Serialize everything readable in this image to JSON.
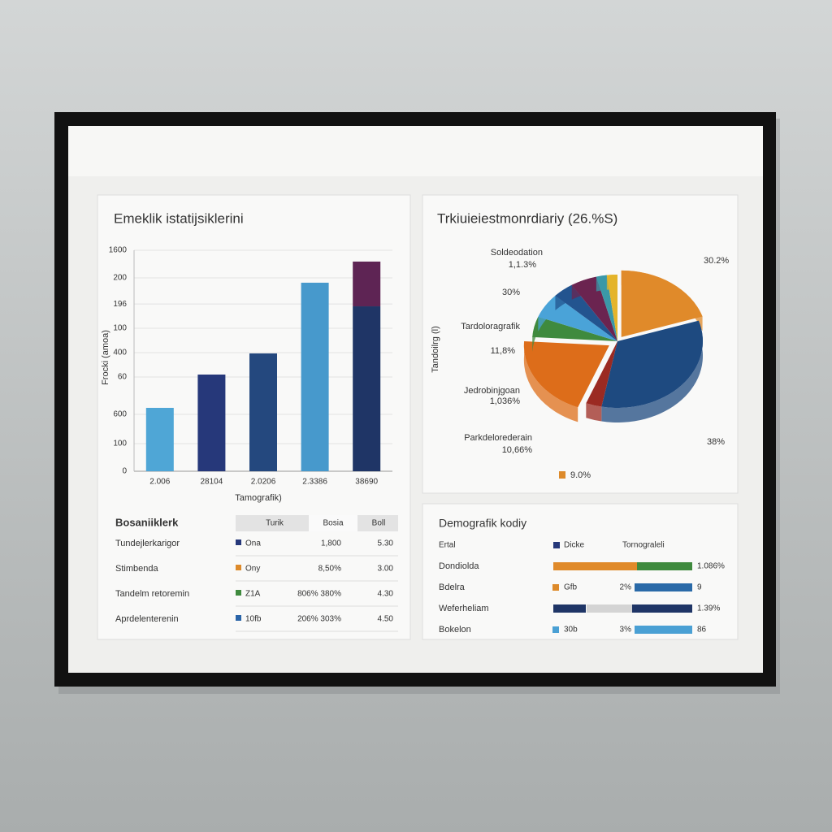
{
  "chart_data": [
    {
      "type": "bar",
      "title": "Emeklik istatijsiklerini",
      "y_label": "Frocki (amoa)",
      "x_label": "Tamografik)",
      "categories": [
        "2.006",
        "28104",
        "2.0206",
        "2.3386",
        "38690"
      ],
      "values": [
        459,
        700,
        853,
        1365,
        1194
      ],
      "colors": [
        "#4fa6d6",
        "#26387a",
        "#24487e",
        "#4799cc",
        "#1f3566"
      ],
      "stack_values": [
        null,
        null,
        null,
        null,
        324
      ],
      "stack_color": "#5e2454",
      "ylim": [
        0,
        1600
      ],
      "yticks": [
        {
          "value": 200,
          "label": "100"
        },
        {
          "value": 412,
          "label": "600"
        },
        {
          "value": 682,
          "label": "60"
        },
        {
          "value": 859,
          "label": "400"
        },
        {
          "value": 1035,
          "label": "100"
        },
        {
          "value": 1211,
          "label": "196"
        },
        {
          "value": 1400,
          "label": "200"
        },
        1600,
        0
      ],
      "grid": true
    },
    {
      "type": "pie",
      "title": "Trkiuieiestmonrdiariy (26.%S)",
      "y_label": "Tandoilrg (l)",
      "values": [
        20,
        33,
        3,
        20,
        5,
        6,
        4,
        5,
        2,
        2
      ],
      "colors": [
        "#e08a2a",
        "#1e4a80",
        "#9b2a22",
        "#dd6d1a",
        "#3f8a3e",
        "#4aa3d8",
        "#23548f",
        "#6b2450",
        "#3a98a8",
        "#e4b42a"
      ],
      "annotations": [
        "30.2%",
        "38%",
        "Soldeodation",
        "1,1.3%",
        "30%",
        "Tardoloragrafik",
        "11,8%",
        "Jedrobinjgoan",
        "1,036%",
        "Parkdelorederain",
        "10,66%",
        "9.0%"
      ]
    }
  ],
  "table": {
    "title": "Bosaniiklerk",
    "columns": [
      "Turik",
      "Bosia",
      "Boll"
    ],
    "rows": [
      [
        "Tundejlerkarigor",
        "Ona",
        "1,800",
        "5.30"
      ],
      [
        "Stimbenda",
        "Ony",
        "8,50%",
        "3.00"
      ],
      [
        "Tandelm retoremin",
        "Z1A",
        "806% 380%",
        "4.30"
      ],
      [
        "Aprdelenterenin",
        "10fb",
        "206% 303%",
        "4.50"
      ]
    ]
  },
  "demographics": {
    "title": "Demografik kodiy",
    "header": [
      "Ertal",
      "Dicke",
      "Tornograleli"
    ],
    "rows": [
      [
        "Dondiolda",
        "1.086%"
      ],
      [
        "Bdelra",
        "Gfb",
        "2%",
        "9"
      ],
      [
        "Weferheliam",
        "1.39%"
      ],
      [
        "Bokelon",
        "30b",
        "3%",
        "86"
      ]
    ]
  }
}
